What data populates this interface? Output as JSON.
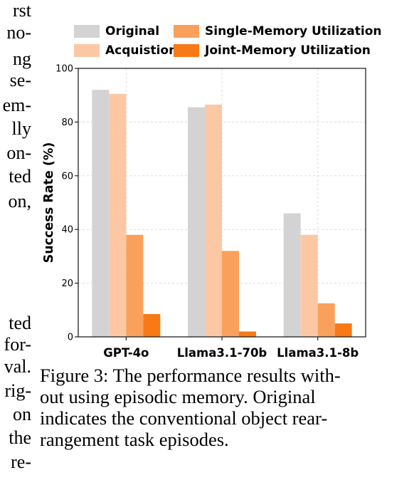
{
  "left_column_fragments": [
    "rst",
    "no-",
    "ng",
    "se-",
    "em-",
    "lly",
    "on-",
    "ted",
    "on,",
    "ted",
    "for-",
    "val.",
    "rig-",
    "on",
    "the",
    "re-"
  ],
  "caption": {
    "label": "Figure 3:",
    "lines": [
      "Figure 3: The performance results with-",
      "out using episodic memory.  Original",
      "indicates the conventional object rear-",
      "rangement task episodes."
    ]
  },
  "chart_data": {
    "type": "bar",
    "categories": [
      "GPT-4o",
      "Llama3.1-70b",
      "Llama3.1-8b"
    ],
    "series": [
      {
        "name": "Original",
        "color": "#d3d3d3",
        "values": [
          92,
          85.5,
          46
        ]
      },
      {
        "name": "Acquistion",
        "color": "#fcc8a3",
        "values": [
          90.5,
          86.5,
          38
        ]
      },
      {
        "name": "Single-Memory Utilization",
        "color": "#f9a15c",
        "values": [
          38,
          32,
          12.5
        ]
      },
      {
        "name": "Joint-Memory Utilization",
        "color": "#f77a17",
        "values": [
          8.5,
          2,
          5
        ]
      }
    ],
    "ylabel": "Success Rate (%)",
    "xlabel": "",
    "ylim": [
      0,
      100
    ],
    "yticks": [
      0,
      20,
      40,
      60,
      80,
      100
    ],
    "grid": true,
    "legend_position": "top"
  }
}
